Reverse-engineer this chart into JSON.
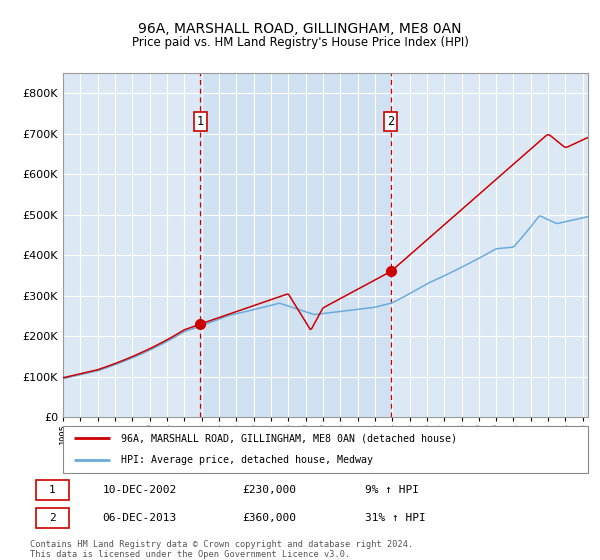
{
  "title1": "96A, MARSHALL ROAD, GILLINGHAM, ME8 0AN",
  "title2": "Price paid vs. HM Land Registry's House Price Index (HPI)",
  "bg_color": "#dce9f5",
  "hpi_color": "#6aabdc",
  "price_color": "#cc0000",
  "sale1_date": 2002.92,
  "sale1_value": 230000,
  "sale2_date": 2013.92,
  "sale2_value": 360000,
  "sale1_label": "1",
  "sale2_label": "2",
  "legend_line1": "96A, MARSHALL ROAD, GILLINGHAM, ME8 0AN (detached house)",
  "legend_line2": "HPI: Average price, detached house, Medway",
  "table_row1": [
    "1",
    "10-DEC-2002",
    "£230,000",
    "9% ↑ HPI"
  ],
  "table_row2": [
    "2",
    "06-DEC-2013",
    "£360,000",
    "31% ↑ HPI"
  ],
  "footnote": "Contains HM Land Registry data © Crown copyright and database right 2024.\nThis data is licensed under the Open Government Licence v3.0.",
  "ylim": [
    0,
    850000
  ],
  "xlim_start": 1995.0,
  "xlim_end": 2025.3
}
